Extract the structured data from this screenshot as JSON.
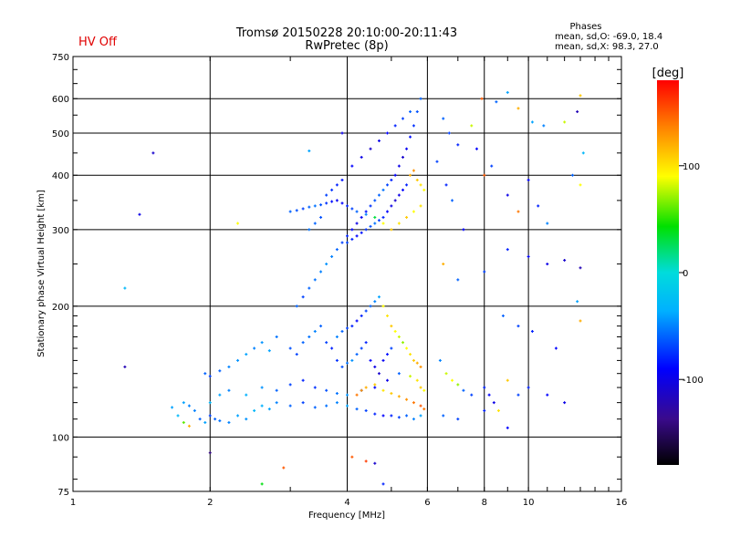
{
  "status_label": "HV Off",
  "phase_box": {
    "title": "Phases",
    "line_o": "mean, sd,O: -69.0, 18.4",
    "line_x": "mean, sd,X:  98.3, 27.0"
  },
  "chart_data": {
    "type": "scatter",
    "title": "Tromsø 20150228 20:10:00-20:11:43",
    "subtitle": "RwPretec (8p)",
    "xlabel": "Frequency [MHz]",
    "ylabel": "Stationary phase Virtual Height [km]",
    "x_scale": "log",
    "y_scale": "log",
    "xlim": [
      1,
      16
    ],
    "ylim": [
      75,
      750
    ],
    "x_ticks": [
      1,
      2,
      4,
      6,
      8,
      10,
      16
    ],
    "y_ticks": [
      75,
      100,
      200,
      300,
      400,
      500,
      600,
      750
    ],
    "grid": true,
    "colorbar": {
      "label": "[deg]",
      "range": [
        -180,
        180
      ],
      "ticks": [
        100,
        0,
        -100
      ]
    },
    "points": [
      [
        1.65,
        117,
        -40
      ],
      [
        1.7,
        112,
        -30
      ],
      [
        1.75,
        108,
        60
      ],
      [
        1.8,
        106,
        120
      ],
      [
        1.85,
        115,
        -50
      ],
      [
        1.9,
        110,
        -60
      ],
      [
        1.95,
        108,
        -40
      ],
      [
        2.0,
        112,
        -70
      ],
      [
        2.05,
        110,
        -60
      ],
      [
        2.1,
        109,
        -55
      ],
      [
        2.2,
        108,
        -50
      ],
      [
        2.3,
        112,
        -40
      ],
      [
        2.4,
        110,
        -45
      ],
      [
        2.5,
        115,
        -30
      ],
      [
        2.6,
        118,
        -35
      ],
      [
        2.7,
        116,
        -40
      ],
      [
        2.8,
        120,
        -50
      ],
      [
        3.0,
        118,
        -60
      ],
      [
        3.2,
        120,
        -70
      ],
      [
        3.4,
        117,
        -60
      ],
      [
        3.6,
        118,
        -55
      ],
      [
        3.8,
        120,
        -50
      ],
      [
        4.0,
        118,
        -40
      ],
      [
        4.2,
        116,
        -60
      ],
      [
        4.4,
        115,
        -70
      ],
      [
        4.6,
        113,
        -80
      ],
      [
        4.8,
        112,
        -90
      ],
      [
        5.0,
        112,
        -80
      ],
      [
        5.2,
        111,
        -70
      ],
      [
        5.4,
        112,
        -60
      ],
      [
        5.6,
        110,
        -50
      ],
      [
        5.8,
        112,
        -40
      ],
      [
        1.75,
        120,
        -40
      ],
      [
        1.8,
        118,
        -50
      ],
      [
        2.0,
        120,
        -30
      ],
      [
        2.1,
        125,
        -40
      ],
      [
        2.2,
        128,
        -50
      ],
      [
        2.4,
        125,
        -35
      ],
      [
        2.6,
        130,
        -45
      ],
      [
        2.8,
        128,
        -60
      ],
      [
        3.0,
        132,
        -70
      ],
      [
        3.2,
        135,
        -80
      ],
      [
        3.4,
        130,
        -75
      ],
      [
        3.6,
        128,
        -65
      ],
      [
        3.8,
        126,
        -55
      ],
      [
        4.0,
        125,
        -45
      ],
      [
        4.3,
        128,
        -70
      ],
      [
        4.6,
        130,
        -90
      ],
      [
        4.9,
        135,
        -100
      ],
      [
        5.2,
        140,
        -60
      ],
      [
        5.5,
        138,
        80
      ],
      [
        5.7,
        135,
        100
      ],
      [
        5.8,
        130,
        110
      ],
      [
        5.9,
        128,
        90
      ],
      [
        1.95,
        140,
        -60
      ],
      [
        2.0,
        138,
        -70
      ],
      [
        2.1,
        142,
        -60
      ],
      [
        2.2,
        145,
        -50
      ],
      [
        2.3,
        150,
        -45
      ],
      [
        2.4,
        155,
        -40
      ],
      [
        2.5,
        160,
        -50
      ],
      [
        2.6,
        165,
        -45
      ],
      [
        2.7,
        158,
        -40
      ],
      [
        2.8,
        170,
        -55
      ],
      [
        3.0,
        160,
        -65
      ],
      [
        3.1,
        155,
        -70
      ],
      [
        3.2,
        165,
        -60
      ],
      [
        3.3,
        170,
        -55
      ],
      [
        3.4,
        175,
        -50
      ],
      [
        3.5,
        180,
        -60
      ],
      [
        3.6,
        165,
        -70
      ],
      [
        3.7,
        160,
        -80
      ],
      [
        3.8,
        150,
        -75
      ],
      [
        3.9,
        145,
        -65
      ],
      [
        4.0,
        148,
        -55
      ],
      [
        4.1,
        150,
        -45
      ],
      [
        4.2,
        155,
        -60
      ],
      [
        4.3,
        160,
        -70
      ],
      [
        4.4,
        165,
        -80
      ],
      [
        4.5,
        150,
        -90
      ],
      [
        4.6,
        145,
        -100
      ],
      [
        4.7,
        140,
        -110
      ],
      [
        4.8,
        150,
        -95
      ],
      [
        4.9,
        155,
        -85
      ],
      [
        5.0,
        160,
        -70
      ],
      [
        3.1,
        200,
        -60
      ],
      [
        3.2,
        210,
        -70
      ],
      [
        3.3,
        220,
        -60
      ],
      [
        3.4,
        230,
        -55
      ],
      [
        3.5,
        240,
        -50
      ],
      [
        3.6,
        250,
        -45
      ],
      [
        3.7,
        260,
        -50
      ],
      [
        3.8,
        270,
        -60
      ],
      [
        3.9,
        280,
        -70
      ],
      [
        4.0,
        290,
        -80
      ],
      [
        4.1,
        300,
        -90
      ],
      [
        4.2,
        310,
        -100
      ],
      [
        4.3,
        320,
        -95
      ],
      [
        4.4,
        330,
        -85
      ],
      [
        4.5,
        340,
        -75
      ],
      [
        4.6,
        350,
        -65
      ],
      [
        4.7,
        360,
        -60
      ],
      [
        4.8,
        370,
        -55
      ],
      [
        4.9,
        380,
        -70
      ],
      [
        5.0,
        390,
        -80
      ],
      [
        5.1,
        400,
        -90
      ],
      [
        5.2,
        420,
        -100
      ],
      [
        5.3,
        440,
        -110
      ],
      [
        5.4,
        460,
        -95
      ],
      [
        5.5,
        490,
        -85
      ],
      [
        5.6,
        520,
        -75
      ],
      [
        5.7,
        560,
        -65
      ],
      [
        5.8,
        600,
        -60
      ],
      [
        3.0,
        330,
        -60
      ],
      [
        3.1,
        332,
        -65
      ],
      [
        3.2,
        335,
        -70
      ],
      [
        3.3,
        338,
        -60
      ],
      [
        3.4,
        340,
        -55
      ],
      [
        3.5,
        342,
        -65
      ],
      [
        3.6,
        345,
        -75
      ],
      [
        3.7,
        348,
        -85
      ],
      [
        3.8,
        350,
        -95
      ],
      [
        3.9,
        345,
        -90
      ],
      [
        4.0,
        340,
        -80
      ],
      [
        4.1,
        335,
        -70
      ],
      [
        4.2,
        330,
        -60
      ],
      [
        4.4,
        325,
        -50
      ],
      [
        4.6,
        320,
        30
      ],
      [
        4.8,
        310,
        90
      ],
      [
        5.0,
        300,
        110
      ],
      [
        5.2,
        310,
        100
      ],
      [
        5.4,
        320,
        110
      ],
      [
        5.6,
        330,
        90
      ],
      [
        5.8,
        340,
        100
      ],
      [
        4.0,
        280,
        -70
      ],
      [
        4.1,
        285,
        -80
      ],
      [
        4.2,
        290,
        -90
      ],
      [
        4.3,
        295,
        -85
      ],
      [
        4.4,
        300,
        -75
      ],
      [
        4.5,
        305,
        -65
      ],
      [
        4.6,
        310,
        -55
      ],
      [
        4.7,
        315,
        -70
      ],
      [
        4.8,
        320,
        -80
      ],
      [
        4.9,
        330,
        -90
      ],
      [
        5.0,
        340,
        -100
      ],
      [
        5.1,
        350,
        -110
      ],
      [
        5.2,
        360,
        -100
      ],
      [
        5.3,
        370,
        -90
      ],
      [
        5.4,
        380,
        -80
      ],
      [
        5.5,
        400,
        120
      ],
      [
        5.6,
        410,
        130
      ],
      [
        5.7,
        390,
        110
      ],
      [
        5.8,
        380,
        100
      ],
      [
        5.9,
        370,
        90
      ],
      [
        3.3,
        300,
        -55
      ],
      [
        3.4,
        310,
        -60
      ],
      [
        3.5,
        320,
        -65
      ],
      [
        3.6,
        360,
        -70
      ],
      [
        3.7,
        370,
        -75
      ],
      [
        3.8,
        380,
        -80
      ],
      [
        3.9,
        390,
        -85
      ],
      [
        4.1,
        420,
        -90
      ],
      [
        4.3,
        440,
        -100
      ],
      [
        4.5,
        460,
        -110
      ],
      [
        4.7,
        480,
        -100
      ],
      [
        4.9,
        500,
        -90
      ],
      [
        5.1,
        520,
        -80
      ],
      [
        5.3,
        540,
        -70
      ],
      [
        5.5,
        560,
        -60
      ],
      [
        3.8,
        170,
        -50
      ],
      [
        3.9,
        175,
        -60
      ],
      [
        4.0,
        178,
        -70
      ],
      [
        4.1,
        180,
        -80
      ],
      [
        4.2,
        185,
        -90
      ],
      [
        4.3,
        190,
        -80
      ],
      [
        4.4,
        195,
        -70
      ],
      [
        4.5,
        200,
        -60
      ],
      [
        4.6,
        205,
        -50
      ],
      [
        4.7,
        210,
        -40
      ],
      [
        4.8,
        200,
        90
      ],
      [
        4.9,
        190,
        100
      ],
      [
        5.0,
        180,
        110
      ],
      [
        5.1,
        175,
        90
      ],
      [
        5.2,
        170,
        80
      ],
      [
        5.3,
        165,
        70
      ],
      [
        5.4,
        160,
        90
      ],
      [
        5.5,
        155,
        100
      ],
      [
        5.6,
        150,
        110
      ],
      [
        5.7,
        148,
        120
      ],
      [
        5.8,
        145,
        130
      ],
      [
        4.2,
        125,
        140
      ],
      [
        4.3,
        128,
        130
      ],
      [
        4.4,
        130,
        120
      ],
      [
        4.6,
        132,
        110
      ],
      [
        4.8,
        128,
        100
      ],
      [
        5.0,
        126,
        110
      ],
      [
        5.2,
        124,
        120
      ],
      [
        5.4,
        122,
        130
      ],
      [
        5.6,
        120,
        140
      ],
      [
        5.8,
        118,
        150
      ],
      [
        5.9,
        116,
        140
      ],
      [
        1.3,
        220,
        -30
      ],
      [
        1.4,
        325,
        -100
      ],
      [
        1.5,
        450,
        -110
      ],
      [
        1.3,
        145,
        -120
      ],
      [
        2.0,
        92,
        -140
      ],
      [
        2.3,
        310,
        90
      ],
      [
        2.6,
        78,
        40
      ],
      [
        2.9,
        85,
        150
      ],
      [
        3.3,
        455,
        -40
      ],
      [
        3.9,
        500,
        -100
      ],
      [
        4.1,
        90,
        150
      ],
      [
        4.4,
        88,
        160
      ],
      [
        4.6,
        87,
        -110
      ],
      [
        4.8,
        78,
        -80
      ],
      [
        6.5,
        540,
        -60
      ],
      [
        6.7,
        500,
        -70
      ],
      [
        7.0,
        470,
        -80
      ],
      [
        7.5,
        520,
        80
      ],
      [
        7.9,
        600,
        150
      ],
      [
        7.7,
        460,
        -90
      ],
      [
        8.5,
        590,
        -60
      ],
      [
        9.0,
        620,
        -40
      ],
      [
        9.5,
        570,
        120
      ],
      [
        10.2,
        530,
        -40
      ],
      [
        10.8,
        520,
        -50
      ],
      [
        12.0,
        530,
        80
      ],
      [
        12.8,
        560,
        -120
      ],
      [
        13.0,
        610,
        110
      ],
      [
        13.2,
        450,
        -30
      ],
      [
        6.3,
        430,
        -70
      ],
      [
        6.6,
        380,
        -80
      ],
      [
        6.8,
        350,
        -60
      ],
      [
        7.2,
        300,
        -90
      ],
      [
        8.0,
        400,
        150
      ],
      [
        8.3,
        420,
        -70
      ],
      [
        9.0,
        360,
        -100
      ],
      [
        9.5,
        330,
        140
      ],
      [
        10.0,
        390,
        -90
      ],
      [
        10.5,
        340,
        -80
      ],
      [
        11.0,
        310,
        -50
      ],
      [
        12.5,
        400,
        -60
      ],
      [
        13.0,
        380,
        90
      ],
      [
        6.5,
        250,
        120
      ],
      [
        7.0,
        230,
        -60
      ],
      [
        8.0,
        240,
        -70
      ],
      [
        9.0,
        270,
        -80
      ],
      [
        10.0,
        260,
        -90
      ],
      [
        11.0,
        250,
        -100
      ],
      [
        12.0,
        255,
        -110
      ],
      [
        13.0,
        245,
        -120
      ],
      [
        8.8,
        190,
        -60
      ],
      [
        9.5,
        180,
        -70
      ],
      [
        10.2,
        175,
        -80
      ],
      [
        11.5,
        160,
        -90
      ],
      [
        13.0,
        185,
        120
      ],
      [
        12.8,
        205,
        -40
      ],
      [
        6.4,
        150,
        -50
      ],
      [
        6.6,
        140,
        80
      ],
      [
        6.8,
        135,
        90
      ],
      [
        7.0,
        132,
        70
      ],
      [
        7.2,
        128,
        -60
      ],
      [
        7.5,
        125,
        -70
      ],
      [
        8.0,
        130,
        -80
      ],
      [
        8.2,
        125,
        -90
      ],
      [
        8.4,
        120,
        -100
      ],
      [
        8.6,
        115,
        100
      ],
      [
        9.0,
        135,
        110
      ],
      [
        9.5,
        125,
        -70
      ],
      [
        10.0,
        130,
        -80
      ],
      [
        11.0,
        125,
        -90
      ],
      [
        12.0,
        120,
        -100
      ],
      [
        6.5,
        112,
        -60
      ],
      [
        7.0,
        110,
        -70
      ],
      [
        8.0,
        115,
        -80
      ],
      [
        9.0,
        105,
        -90
      ]
    ]
  }
}
